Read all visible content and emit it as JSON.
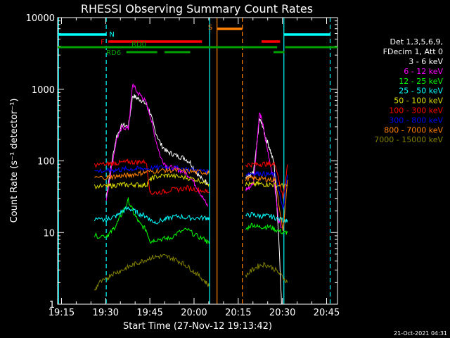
{
  "chart_data": {
    "type": "line",
    "title": "RHESSI Observing Summary Count Rates",
    "xlabel": "Start Time (27-Nov-12 19:13:42)",
    "ylabel": "Count Rate (s⁻¹ detector⁻¹)",
    "yscale": "log",
    "ylim": [
      1,
      10000
    ],
    "xlim_min": [
      0,
      95
    ],
    "x_ticks": [
      {
        "m": 1.3,
        "label": "19:15"
      },
      {
        "m": 16.3,
        "label": "19:30"
      },
      {
        "m": 31.3,
        "label": "19:45"
      },
      {
        "m": 46.3,
        "label": "20:00"
      },
      {
        "m": 61.3,
        "label": "20:15"
      },
      {
        "m": 76.3,
        "label": "20:30"
      },
      {
        "m": 91.3,
        "label": "20:45"
      }
    ],
    "y_ticks": [
      {
        "v": 1,
        "label": "1"
      },
      {
        "v": 10,
        "label": "10"
      },
      {
        "v": 100,
        "label": "100"
      },
      {
        "v": 1000,
        "label": "1000"
      },
      {
        "v": 10000,
        "label": "10000"
      }
    ],
    "legend": {
      "header1": "Det 1,3,5,6,9,",
      "header2": "FDecim 1, Att 0",
      "entries": [
        {
          "label": "3 - 6 keV",
          "color": "#ffffff"
        },
        {
          "label": "6 - 12 keV",
          "color": "#ff00ff"
        },
        {
          "label": "12 - 25 keV",
          "color": "#00ff00"
        },
        {
          "label": "25 - 50 keV",
          "color": "#00ffff"
        },
        {
          "label": "50 - 100 keV",
          "color": "#dddd00"
        },
        {
          "label": "100 - 300 keV",
          "color": "#ff0000"
        },
        {
          "label": "300 - 800 keV",
          "color": "#0000ff"
        },
        {
          "label": "800 - 7000 keV",
          "color": "#ff8000"
        },
        {
          "label": "7000 - 15000 keV",
          "color": "#808000"
        }
      ]
    },
    "flag_bars": [
      {
        "label": "N",
        "color": "#00ffff",
        "segments": [
          [
            0,
            16.5
          ],
          [
            76.8,
            92.5
          ]
        ]
      },
      {
        "label": "F",
        "color": "#ff0000",
        "segments": [
          [
            17.2,
            49
          ],
          [
            69.2,
            75.5
          ]
        ]
      },
      {
        "label": "S",
        "color": "#ff8000",
        "segments": [
          [
            54.2,
            62.7
          ]
        ]
      },
      {
        "label": "RD0",
        "color": "#00a000",
        "segments": [
          [
            0,
            74.5
          ],
          [
            77.2,
            95
          ]
        ]
      },
      {
        "label": "RD6",
        "color": "#00a000",
        "segments": [
          [
            23.3,
            33.8
          ],
          [
            36.3,
            45
          ],
          [
            73.3,
            77
          ]
        ]
      }
    ],
    "vertical_lines": [
      {
        "m": 0.3,
        "color": "#00ffff",
        "style": "solid"
      },
      {
        "m": 16.5,
        "color": "#00ffff",
        "style": "dashed"
      },
      {
        "m": 51.6,
        "color": "#00ffff",
        "style": "solid"
      },
      {
        "m": 54.1,
        "color": "#ff8000",
        "style": "solid"
      },
      {
        "m": 62.7,
        "color": "#ff8000",
        "style": "dashed"
      },
      {
        "m": 76.8,
        "color": "#00ffff",
        "style": "solid"
      },
      {
        "m": 92.5,
        "color": "#00ffff",
        "style": "dashed"
      }
    ],
    "series": [
      {
        "name": "3 - 6 keV",
        "color": "#ffffff",
        "segments": [
          {
            "x": [
              16.5,
              18,
              20,
              22,
              24,
              25.5,
              27,
              28.5,
              30,
              31.5,
              33,
              35,
              37,
              39,
              41,
              43,
              45,
              47,
              49,
              51
            ],
            "y": [
              32,
              80,
              220,
              320,
              300,
              820,
              750,
              700,
              620,
              460,
              270,
              170,
              135,
              125,
              115,
              110,
              95,
              70,
              55,
              50
            ]
          },
          {
            "x": [
              63.8,
              65,
              66.5,
              67.5,
              68.5,
              69.5,
              70.5,
              72,
              73.5,
              75,
              76
            ],
            "y": [
              60,
              62,
              68,
              150,
              380,
              320,
              220,
              150,
              90,
              10,
              1
            ]
          }
        ]
      },
      {
        "name": "6 - 12 keV",
        "color": "#ff00ff",
        "segments": [
          {
            "x": [
              16.5,
              18,
              20,
              22,
              24,
              25.5,
              27,
              28.5,
              30,
              31.5,
              33,
              35,
              37,
              39,
              41,
              43,
              45,
              47,
              49,
              51
            ],
            "y": [
              28,
              70,
              200,
              300,
              280,
              1200,
              900,
              800,
              650,
              420,
              220,
              110,
              85,
              80,
              75,
              70,
              60,
              45,
              32,
              23
            ]
          },
          {
            "x": [
              63.8,
              65,
              66.5,
              67.5,
              68.5,
              69.5,
              70.5,
              72,
              73.5,
              75,
              76
            ],
            "y": [
              40,
              42,
              50,
              150,
              470,
              350,
              200,
              100,
              50,
              15,
              12
            ]
          }
        ]
      },
      {
        "name": "12 - 25 keV",
        "color": "#00ff00",
        "segments": [
          {
            "x": [
              12.5,
              16.5,
              18,
              20,
              22,
              24,
              26,
              28,
              30,
              31.5,
              33,
              36,
              38,
              41,
              44,
              47,
              50,
              51.4
            ],
            "y": [
              9,
              9,
              10,
              13,
              19,
              28,
              18,
              13,
              11,
              7.5,
              8,
              8.2,
              8.3,
              10,
              11,
              9,
              8,
              7
            ]
          },
          {
            "x": [
              63.8,
              66,
              68,
              70,
              72,
              74,
              76.5,
              78
            ],
            "y": [
              11,
              13,
              12,
              12,
              12,
              11,
              10,
              10
            ]
          }
        ]
      },
      {
        "name": "25 - 50 keV",
        "color": "#00ffff",
        "segments": [
          {
            "x": [
              12.5,
              16.5,
              18,
              20,
              22,
              24,
              26,
              28,
              30,
              31.5,
              33,
              36,
              38,
              41,
              44,
              47,
              50,
              51.4
            ],
            "y": [
              15,
              15,
              16,
              17,
              20,
              22,
              20,
              18,
              17,
              15,
              14,
              15,
              16,
              17,
              16,
              16,
              16,
              16
            ]
          },
          {
            "x": [
              63.8,
              66,
              68,
              70,
              72,
              74,
              76.5,
              78
            ],
            "y": [
              17,
              18,
              17,
              17,
              17,
              16,
              15,
              15
            ]
          }
        ]
      },
      {
        "name": "50 - 100 keV",
        "color": "#dddd00",
        "segments": [
          {
            "x": [
              12.5,
              16.5,
              18,
              20,
              22,
              24,
              26,
              28,
              30,
              31.5,
              33,
              36,
              38,
              41,
              44,
              47,
              50,
              51.4
            ],
            "y": [
              44,
              44,
              45,
              46,
              47,
              46,
              47,
              46,
              46,
              55,
              60,
              62,
              63,
              60,
              58,
              55,
              50,
              48
            ]
          },
          {
            "x": [
              63.8,
              66,
              68,
              70,
              72,
              74,
              76.5,
              78
            ],
            "y": [
              47,
              47,
              48,
              47,
              47,
              46,
              45,
              45
            ]
          }
        ]
      },
      {
        "name": "100 - 300 keV",
        "color": "#ff0000",
        "segments": [
          {
            "x": [
              12.5,
              16.5,
              18,
              20,
              22,
              24,
              26,
              28,
              30,
              31.5,
              33,
              36,
              38,
              41,
              44,
              47,
              50,
              51.4
            ],
            "y": [
              88,
              90,
              92,
              93,
              95,
              97,
              96,
              97,
              98,
              35,
              36,
              37,
              39,
              40,
              42,
              40,
              38,
              37
            ]
          },
          {
            "x": [
              63.8,
              66,
              68,
              70,
              72,
              74,
              76.5,
              78
            ],
            "y": [
              88,
              89,
              90,
              91,
              90,
              89,
              30,
              89
            ]
          }
        ]
      },
      {
        "name": "300 - 800 keV",
        "color": "#0000ff",
        "segments": [
          {
            "x": [
              12.5,
              16.5,
              18,
              20,
              22,
              24,
              26,
              28,
              30,
              33,
              36,
              38,
              41,
              44,
              47,
              50,
              51.4
            ],
            "y": [
              72,
              73,
              74,
              75,
              76,
              77,
              77,
              78,
              78,
              80,
              82,
              81,
              79,
              77,
              74,
              72,
              70
            ]
          },
          {
            "x": [
              63.8,
              66,
              68,
              70,
              72,
              74,
              76.5,
              78
            ],
            "y": [
              66,
              67,
              67,
              66,
              65,
              64,
              20,
              64
            ]
          }
        ]
      },
      {
        "name": "800 - 7000 keV",
        "color": "#ff8000",
        "segments": [
          {
            "x": [
              12.5,
              16.5,
              18,
              20,
              22,
              24,
              26,
              28,
              30,
              33,
              36,
              38,
              41,
              44,
              47,
              50,
              51.4
            ],
            "y": [
              58,
              59,
              60,
              61,
              62,
              63,
              65,
              67,
              70,
              72,
              74,
              74,
              73,
              72,
              70,
              69,
              68
            ]
          },
          {
            "x": [
              63.8,
              66,
              68,
              70,
              72,
              74,
              76.5,
              78
            ],
            "y": [
              56,
              57,
              57,
              56,
              55,
              54,
              10,
              54
            ]
          }
        ]
      },
      {
        "name": "7000 - 15000 keV",
        "color": "#808000",
        "segments": [
          {
            "x": [
              12.5,
              14,
              16.5,
              18,
              20,
              22,
              24,
              26,
              28,
              30,
              32,
              34,
              36,
              38,
              40,
              42,
              44,
              46,
              48,
              50,
              51.4
            ],
            "y": [
              1.5,
              2,
              2.2,
              2.6,
              2.8,
              3.0,
              3.3,
              3.6,
              3.9,
              4.2,
              4.5,
              4.6,
              4.7,
              4.5,
              4.2,
              3.8,
              3.4,
              2.9,
              2.5,
              2.1,
              1.8
            ]
          },
          {
            "x": [
              63.8,
              66,
              68,
              70,
              72,
              74,
              76,
              78
            ],
            "y": [
              2.5,
              3.0,
              3.4,
              3.6,
              3.4,
              3.0,
              2.5,
              2.0
            ]
          }
        ]
      }
    ]
  },
  "footer_timestamp": "21-Oct-2021 04:31"
}
